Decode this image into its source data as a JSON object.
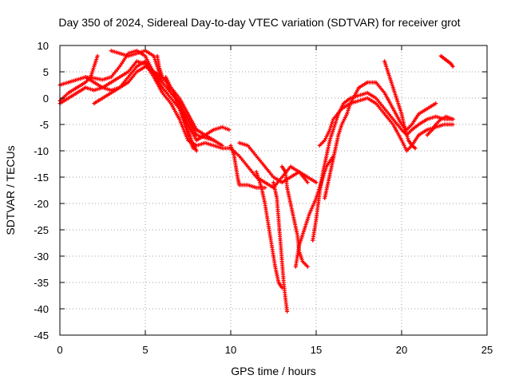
{
  "chart_data": {
    "type": "scatter",
    "title": "Day 350 of 2024, Sidereal Day-to-day VTEC variation (SDTVAR) for receiver grot",
    "xlabel": "GPS time / hours",
    "ylabel": "SDTVAR / TECUs",
    "xlim": [
      0,
      25
    ],
    "ylim": [
      -45,
      10
    ],
    "xticks": [
      0,
      5,
      10,
      15,
      20,
      25
    ],
    "yticks": [
      10,
      5,
      0,
      -5,
      -10,
      -15,
      -20,
      -25,
      -30,
      -35,
      -40,
      -45
    ],
    "grid": true,
    "marker": "+",
    "color": "#ff0000",
    "series": [
      {
        "points": [
          [
            0,
            2.5
          ],
          [
            0.5,
            3
          ],
          [
            1,
            3.5
          ],
          [
            1.5,
            4
          ],
          [
            2,
            3.8
          ],
          [
            2.5,
            3.5
          ],
          [
            3,
            4
          ],
          [
            3.5,
            6
          ],
          [
            4,
            8.5
          ],
          [
            4.5,
            9
          ],
          [
            5,
            8
          ],
          [
            5.3,
            6
          ],
          [
            5.6,
            4
          ],
          [
            6,
            2
          ],
          [
            6.5,
            0
          ],
          [
            7,
            -2
          ],
          [
            7.5,
            -5
          ],
          [
            8,
            -8
          ],
          [
            8.5,
            -7
          ],
          [
            9,
            -6
          ],
          [
            9.5,
            -5.5
          ],
          [
            9.9,
            -6
          ]
        ]
      },
      {
        "points": [
          [
            0,
            -1
          ],
          [
            0.5,
            0
          ],
          [
            1,
            1
          ],
          [
            1.5,
            2
          ],
          [
            2,
            1.5
          ],
          [
            2.5,
            2
          ],
          [
            3,
            3
          ],
          [
            3.5,
            4
          ],
          [
            4,
            5
          ],
          [
            4.5,
            7
          ],
          [
            5,
            6.5
          ],
          [
            5.5,
            4
          ],
          [
            6,
            1
          ],
          [
            6.5,
            -1
          ],
          [
            7,
            -4
          ],
          [
            7.5,
            -8
          ],
          [
            8,
            -9
          ],
          [
            8.5,
            -8.5
          ],
          [
            9,
            -9
          ],
          [
            9.5,
            -9.5
          ],
          [
            10,
            -9.5
          ],
          [
            10.5,
            -11
          ],
          [
            11,
            -13
          ],
          [
            11.5,
            -15
          ],
          [
            12,
            -16
          ],
          [
            12.5,
            -17
          ],
          [
            13,
            -15
          ],
          [
            13.5,
            -13
          ],
          [
            14,
            -14
          ],
          [
            14.5,
            -15
          ],
          [
            15,
            -16
          ]
        ]
      },
      {
        "points": [
          [
            0,
            -0.5
          ],
          [
            0.5,
            1
          ],
          [
            1,
            2
          ],
          [
            1.5,
            3
          ],
          [
            1.8,
            4
          ],
          [
            2,
            6
          ],
          [
            2.2,
            8
          ]
        ]
      },
      {
        "points": [
          [
            1.5,
            4
          ],
          [
            2,
            3
          ],
          [
            2.5,
            2
          ],
          [
            3,
            1.5
          ],
          [
            3.5,
            2
          ],
          [
            4,
            4
          ],
          [
            4.5,
            6
          ],
          [
            5,
            7
          ],
          [
            5.5,
            5
          ],
          [
            6,
            3
          ],
          [
            6.5,
            1
          ],
          [
            7,
            -1
          ],
          [
            7.5,
            -4
          ],
          [
            8,
            -7
          ],
          [
            8.5,
            -7.5
          ],
          [
            9,
            -8
          ],
          [
            9.5,
            -9
          ]
        ]
      },
      {
        "points": [
          [
            2,
            -1
          ],
          [
            2.5,
            0
          ],
          [
            3,
            1
          ],
          [
            3.5,
            2
          ],
          [
            4,
            3
          ],
          [
            4.5,
            5
          ],
          [
            5,
            6
          ],
          [
            5.5,
            5
          ],
          [
            6,
            4
          ],
          [
            6.5,
            2
          ],
          [
            7,
            0
          ],
          [
            7.5,
            -3
          ],
          [
            8,
            -6
          ],
          [
            8.5,
            -7
          ],
          [
            9,
            -8
          ]
        ]
      },
      {
        "points": [
          [
            3,
            9
          ],
          [
            3.5,
            8.5
          ],
          [
            4,
            8
          ],
          [
            4.5,
            8.5
          ],
          [
            5,
            9
          ],
          [
            5.5,
            8
          ],
          [
            5.8,
            5
          ],
          [
            6,
            3
          ]
        ]
      },
      {
        "points": [
          [
            5.7,
            8
          ],
          [
            5.8,
            6
          ],
          [
            6,
            4
          ],
          [
            6.3,
            3
          ],
          [
            6.5,
            1
          ],
          [
            6.8,
            0
          ],
          [
            7,
            -1
          ],
          [
            7.2,
            -3
          ],
          [
            7.4,
            -5
          ],
          [
            7.6,
            -7
          ],
          [
            7.8,
            -9
          ],
          [
            8,
            -10
          ]
        ]
      },
      {
        "points": [
          [
            6.2,
            4
          ],
          [
            6.5,
            2
          ],
          [
            6.8,
            0
          ],
          [
            7,
            -2
          ],
          [
            7.2,
            -4
          ],
          [
            7.4,
            -6
          ],
          [
            7.6,
            -8
          ],
          [
            7.8,
            -9.5
          ]
        ]
      },
      {
        "points": [
          [
            10,
            -9
          ],
          [
            10.2,
            -11
          ],
          [
            10.3,
            -13
          ],
          [
            10.4,
            -15
          ],
          [
            10.5,
            -16.5
          ],
          [
            11,
            -16.5
          ],
          [
            11.5,
            -17
          ],
          [
            12,
            -17
          ]
        ]
      },
      {
        "points": [
          [
            10.5,
            -8.5
          ],
          [
            11,
            -9
          ],
          [
            11.5,
            -11
          ],
          [
            12,
            -13
          ],
          [
            12.5,
            -15
          ],
          [
            13,
            -16
          ],
          [
            13.5,
            -15
          ],
          [
            14,
            -14
          ],
          [
            14.5,
            -16
          ]
        ]
      },
      {
        "points": [
          [
            11.5,
            -14
          ],
          [
            11.8,
            -17
          ],
          [
            12,
            -20
          ],
          [
            12.2,
            -24
          ],
          [
            12.4,
            -28
          ],
          [
            12.6,
            -32
          ],
          [
            12.8,
            -35
          ],
          [
            13,
            -36
          ]
        ]
      },
      {
        "points": [
          [
            12.5,
            -16
          ],
          [
            12.7,
            -19
          ],
          [
            12.8,
            -23
          ],
          [
            12.9,
            -27
          ],
          [
            13,
            -31
          ],
          [
            13.1,
            -35
          ],
          [
            13.2,
            -38
          ],
          [
            13.3,
            -40.5
          ]
        ]
      },
      {
        "points": [
          [
            13,
            -13
          ],
          [
            13.2,
            -14
          ],
          [
            13.3,
            -17
          ],
          [
            13.5,
            -20
          ],
          [
            13.7,
            -23
          ],
          [
            13.9,
            -26
          ],
          [
            14,
            -29
          ],
          [
            14.2,
            -31
          ],
          [
            14.5,
            -32
          ]
        ]
      },
      {
        "points": [
          [
            13.8,
            -32
          ],
          [
            14,
            -28
          ],
          [
            14.3,
            -25
          ],
          [
            14.6,
            -22
          ],
          [
            15,
            -19
          ],
          [
            15.3,
            -16
          ],
          [
            15.6,
            -13
          ],
          [
            16,
            -11
          ]
        ]
      },
      {
        "points": [
          [
            14.8,
            -27
          ],
          [
            15,
            -23
          ],
          [
            15.2,
            -18
          ],
          [
            15.4,
            -14
          ],
          [
            15.6,
            -11
          ],
          [
            15.8,
            -8
          ],
          [
            16,
            -6
          ],
          [
            16.3,
            -3
          ],
          [
            16.6,
            -1
          ],
          [
            17,
            0
          ],
          [
            17.5,
            0.5
          ],
          [
            18,
            1
          ],
          [
            18.5,
            0
          ],
          [
            19,
            -2
          ],
          [
            19.5,
            -4
          ],
          [
            20,
            -6
          ],
          [
            20.3,
            -7
          ],
          [
            20.6,
            -6
          ],
          [
            21,
            -5
          ],
          [
            21.5,
            -4
          ],
          [
            22,
            -3.5
          ],
          [
            22.5,
            -4
          ],
          [
            23,
            -4
          ]
        ]
      },
      {
        "points": [
          [
            15.5,
            -19
          ],
          [
            15.7,
            -16
          ],
          [
            15.9,
            -13
          ],
          [
            16.1,
            -10
          ],
          [
            16.3,
            -7
          ],
          [
            16.5,
            -5
          ],
          [
            16.8,
            -3
          ],
          [
            17,
            -1
          ],
          [
            17.5,
            2
          ],
          [
            18,
            3
          ],
          [
            18.5,
            3
          ],
          [
            19,
            1
          ],
          [
            19.5,
            -2
          ],
          [
            20,
            -5
          ],
          [
            20.3,
            -6
          ],
          [
            20.6,
            -5
          ],
          [
            21,
            -3
          ],
          [
            21.5,
            -2
          ],
          [
            22,
            -1
          ]
        ]
      },
      {
        "points": [
          [
            15.2,
            -9
          ],
          [
            15.5,
            -8
          ],
          [
            15.8,
            -6
          ],
          [
            16,
            -4
          ],
          [
            16.5,
            -2
          ],
          [
            17,
            -1
          ],
          [
            17.5,
            -0.5
          ],
          [
            18,
            0
          ],
          [
            18.5,
            -1
          ],
          [
            19,
            -3
          ],
          [
            19.5,
            -5
          ],
          [
            20,
            -8
          ],
          [
            20.3,
            -10
          ],
          [
            20.6,
            -9
          ],
          [
            21,
            -7
          ],
          [
            21.5,
            -6
          ],
          [
            22,
            -5.5
          ],
          [
            22.5,
            -5
          ],
          [
            23,
            -5
          ]
        ]
      },
      {
        "points": [
          [
            19,
            7
          ],
          [
            19.2,
            5
          ],
          [
            19.4,
            3
          ],
          [
            19.6,
            1
          ],
          [
            19.8,
            -1
          ],
          [
            20,
            -3
          ],
          [
            20.2,
            -6
          ],
          [
            20.4,
            -8
          ],
          [
            20.6,
            -9
          ],
          [
            20.8,
            -9.5
          ]
        ]
      },
      {
        "points": [
          [
            21.5,
            -7
          ],
          [
            21.8,
            -6
          ],
          [
            22,
            -5
          ],
          [
            22.3,
            -4
          ],
          [
            22.6,
            -3.5
          ],
          [
            23,
            -4
          ]
        ]
      },
      {
        "points": [
          [
            22.3,
            8
          ],
          [
            22.5,
            7.5
          ],
          [
            22.7,
            7
          ],
          [
            22.9,
            6.5
          ],
          [
            23,
            6
          ]
        ]
      }
    ]
  }
}
